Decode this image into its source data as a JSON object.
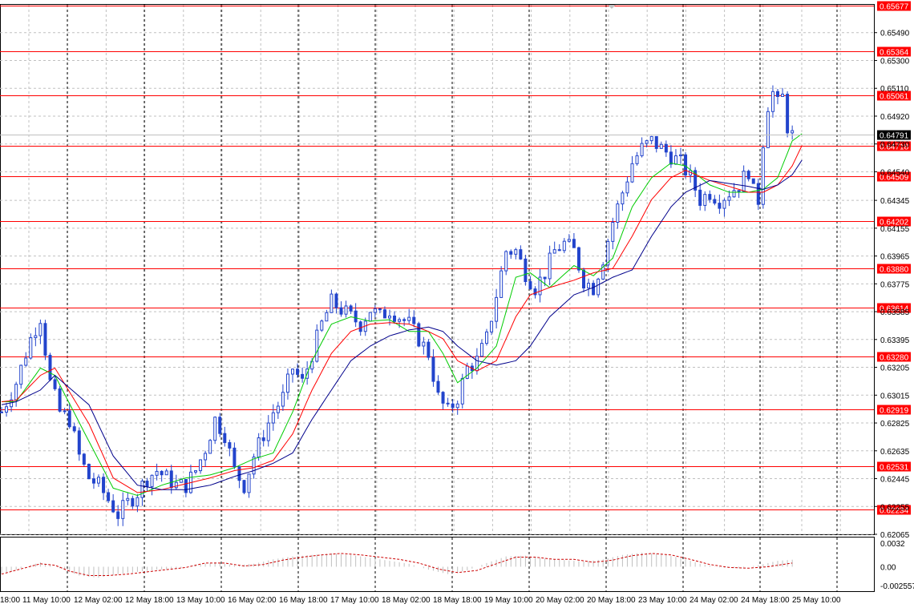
{
  "chart_data": [
    {
      "type": "candlestick",
      "title": "",
      "ylim": [
        0.62065,
        0.6568
      ],
      "grid": true,
      "y_ticks": [
        "0.65490",
        "0.65300",
        "0.65110",
        "0.64920",
        "0.64730",
        "0.64540",
        "0.64345",
        "0.64155",
        "0.63965",
        "0.63775",
        "0.63585",
        "0.63395",
        "0.63205",
        "0.63015",
        "0.62825",
        "0.62635",
        "0.62445",
        "0.62255",
        "0.62065"
      ],
      "x_ticks": [
        "18:00",
        "11 May 10:00",
        "12 May 02:00",
        "12 May 18:00",
        "13 May 10:00",
        "16 May 02:00",
        "16 May 18:00",
        "17 May 10:00",
        "18 May 02:00",
        "18 May 18:00",
        "19 May 10:00",
        "20 May 02:00",
        "20 May 18:00",
        "23 May 10:00",
        "24 May 02:00",
        "24 May 18:00",
        "25 May 10:00"
      ],
      "period_separators": [
        "11 May 10:00",
        "12 May 02:00",
        "12 May 18:00",
        "13 May 10:00",
        "16 May 02:00",
        "16 May 18:00",
        "17 May 10:00",
        "18 May 02:00",
        "18 May 18:00",
        "19 May 10:00",
        "20 May 02:00",
        "20 May 18:00",
        "23 May 10:00",
        "24 May 02:00",
        "24 May 18:00",
        "25 May 10:00"
      ],
      "current_price": "0.64791",
      "price_levels": [
        "0.65677",
        "0.65364",
        "0.65061",
        "0.64718",
        "0.64509",
        "0.64202",
        "0.63880",
        "0.63614",
        "0.63280",
        "0.62919",
        "0.62531",
        "0.62234"
      ],
      "candle_color": "#2244cc",
      "level_color": "#ff0000",
      "series": [
        {
          "color": "#00cc00",
          "waypoints": [
            [
              0,
              0.6297
            ],
            [
              3,
              0.6297
            ],
            [
              8,
              0.632
            ],
            [
              11,
              0.6315
            ],
            [
              18,
              0.627
            ],
            [
              23,
              0.6238
            ],
            [
              28,
              0.6233
            ],
            [
              33,
              0.624
            ],
            [
              38,
              0.6245
            ],
            [
              43,
              0.6247
            ],
            [
              48,
              0.6252
            ],
            [
              52,
              0.6258
            ],
            [
              56,
              0.6262
            ],
            [
              60,
              0.629
            ],
            [
              64,
              0.6325
            ],
            [
              68,
              0.635
            ],
            [
              72,
              0.6355
            ],
            [
              76,
              0.6352
            ],
            [
              80,
              0.6353
            ],
            [
              84,
              0.6345
            ],
            [
              88,
              0.6345
            ],
            [
              91,
              0.633
            ],
            [
              94,
              0.631
            ],
            [
              98,
              0.632
            ],
            [
              102,
              0.6335
            ],
            [
              106,
              0.6382
            ],
            [
              109,
              0.6385
            ],
            [
              113,
              0.6375
            ],
            [
              118,
              0.639
            ],
            [
              122,
              0.6383
            ],
            [
              126,
              0.6395
            ],
            [
              130,
              0.643
            ],
            [
              134,
              0.645
            ],
            [
              138,
              0.646
            ],
            [
              141,
              0.6458
            ],
            [
              146,
              0.6445
            ],
            [
              150,
              0.644
            ],
            [
              154,
              0.644
            ],
            [
              157,
              0.6442
            ],
            [
              160,
              0.645
            ],
            [
              163,
              0.6475
            ],
            [
              165,
              0.648
            ]
          ]
        },
        {
          "color": "#ff0000",
          "waypoints": [
            [
              0,
              0.6297
            ],
            [
              3,
              0.6298
            ],
            [
              8,
              0.6315
            ],
            [
              11,
              0.632
            ],
            [
              18,
              0.6282
            ],
            [
              23,
              0.6245
            ],
            [
              28,
              0.6235
            ],
            [
              33,
              0.6237
            ],
            [
              38,
              0.6241
            ],
            [
              43,
              0.6245
            ],
            [
              48,
              0.625
            ],
            [
              52,
              0.6252
            ],
            [
              56,
              0.6257
            ],
            [
              60,
              0.6275
            ],
            [
              64,
              0.6305
            ],
            [
              68,
              0.633
            ],
            [
              72,
              0.6345
            ],
            [
              76,
              0.635
            ],
            [
              80,
              0.6351
            ],
            [
              84,
              0.635
            ],
            [
              88,
              0.6345
            ],
            [
              91,
              0.634
            ],
            [
              94,
              0.6325
            ],
            [
              98,
              0.6318
            ],
            [
              102,
              0.6325
            ],
            [
              106,
              0.6355
            ],
            [
              109,
              0.637
            ],
            [
              113,
              0.6375
            ],
            [
              118,
              0.638
            ],
            [
              122,
              0.6385
            ],
            [
              126,
              0.6388
            ],
            [
              130,
              0.641
            ],
            [
              134,
              0.6435
            ],
            [
              138,
              0.645
            ],
            [
              141,
              0.6455
            ],
            [
              146,
              0.6448
            ],
            [
              150,
              0.6444
            ],
            [
              154,
              0.644
            ],
            [
              157,
              0.644
            ],
            [
              160,
              0.6445
            ],
            [
              163,
              0.6458
            ],
            [
              165,
              0.6472
            ]
          ]
        },
        {
          "color": "#00008b",
          "waypoints": [
            [
              0,
              0.6295
            ],
            [
              3,
              0.6297
            ],
            [
              8,
              0.6305
            ],
            [
              11,
              0.6315
            ],
            [
              18,
              0.6295
            ],
            [
              23,
              0.626
            ],
            [
              28,
              0.624
            ],
            [
              33,
              0.6237
            ],
            [
              38,
              0.6237
            ],
            [
              43,
              0.624
            ],
            [
              48,
              0.6246
            ],
            [
              52,
              0.625
            ],
            [
              56,
              0.6255
            ],
            [
              60,
              0.6262
            ],
            [
              64,
              0.6285
            ],
            [
              68,
              0.6305
            ],
            [
              72,
              0.6325
            ],
            [
              76,
              0.6335
            ],
            [
              80,
              0.6342
            ],
            [
              84,
              0.6346
            ],
            [
              88,
              0.6348
            ],
            [
              91,
              0.6345
            ],
            [
              94,
              0.6335
            ],
            [
              98,
              0.6325
            ],
            [
              102,
              0.6322
            ],
            [
              106,
              0.6325
            ],
            [
              109,
              0.6335
            ],
            [
              113,
              0.6355
            ],
            [
              118,
              0.637
            ],
            [
              122,
              0.6375
            ],
            [
              126,
              0.6382
            ],
            [
              130,
              0.6387
            ],
            [
              134,
              0.641
            ],
            [
              138,
              0.643
            ],
            [
              141,
              0.644
            ],
            [
              146,
              0.6448
            ],
            [
              150,
              0.6446
            ],
            [
              154,
              0.6444
            ],
            [
              157,
              0.6442
            ],
            [
              160,
              0.6445
            ],
            [
              163,
              0.6452
            ],
            [
              165,
              0.6462
            ]
          ]
        }
      ],
      "price_path": [
        [
          0,
          0.629
        ],
        [
          3,
          0.631
        ],
        [
          6,
          0.634
        ],
        [
          8,
          0.6355
        ],
        [
          10,
          0.631
        ],
        [
          12,
          0.629
        ],
        [
          14,
          0.6285
        ],
        [
          16,
          0.626
        ],
        [
          18,
          0.6245
        ],
        [
          20,
          0.624
        ],
        [
          22,
          0.623
        ],
        [
          24,
          0.622
        ],
        [
          26,
          0.6228
        ],
        [
          28,
          0.6235
        ],
        [
          30,
          0.6245
        ],
        [
          32,
          0.625
        ],
        [
          34,
          0.6245
        ],
        [
          36,
          0.624
        ],
        [
          38,
          0.624
        ],
        [
          40,
          0.625
        ],
        [
          42,
          0.6265
        ],
        [
          44,
          0.6285
        ],
        [
          46,
          0.6275
        ],
        [
          48,
          0.625
        ],
        [
          50,
          0.624
        ],
        [
          52,
          0.626
        ],
        [
          54,
          0.6275
        ],
        [
          56,
          0.629
        ],
        [
          58,
          0.63
        ],
        [
          60,
          0.632
        ],
        [
          62,
          0.631
        ],
        [
          64,
          0.633
        ],
        [
          66,
          0.635
        ],
        [
          68,
          0.6365
        ],
        [
          70,
          0.636
        ],
        [
          72,
          0.6355
        ],
        [
          74,
          0.635
        ],
        [
          76,
          0.636
        ],
        [
          78,
          0.6355
        ],
        [
          80,
          0.636
        ],
        [
          82,
          0.6355
        ],
        [
          84,
          0.635
        ],
        [
          86,
          0.634
        ],
        [
          88,
          0.633
        ],
        [
          90,
          0.63
        ],
        [
          92,
          0.629
        ],
        [
          94,
          0.63
        ],
        [
          96,
          0.632
        ],
        [
          98,
          0.6325
        ],
        [
          100,
          0.634
        ],
        [
          102,
          0.637
        ],
        [
          104,
          0.64
        ],
        [
          106,
          0.64
        ],
        [
          108,
          0.6385
        ],
        [
          110,
          0.6375
        ],
        [
          112,
          0.6385
        ],
        [
          114,
          0.64
        ],
        [
          116,
          0.6405
        ],
        [
          118,
          0.64
        ],
        [
          120,
          0.638
        ],
        [
          122,
          0.6375
        ],
        [
          124,
          0.6395
        ],
        [
          126,
          0.642
        ],
        [
          128,
          0.644
        ],
        [
          130,
          0.646
        ],
        [
          132,
          0.647
        ],
        [
          134,
          0.6475
        ],
        [
          136,
          0.647
        ],
        [
          138,
          0.6465
        ],
        [
          140,
          0.646
        ],
        [
          142,
          0.645
        ],
        [
          144,
          0.6435
        ],
        [
          146,
          0.644
        ],
        [
          148,
          0.6435
        ],
        [
          150,
          0.644
        ],
        [
          152,
          0.6445
        ],
        [
          154,
          0.6455
        ],
        [
          155,
          0.644
        ],
        [
          156,
          0.6435
        ],
        [
          157,
          0.6475
        ],
        [
          158,
          0.65
        ],
        [
          159,
          0.6508
        ],
        [
          160,
          0.65
        ],
        [
          161,
          0.6505
        ],
        [
          162,
          0.6485
        ],
        [
          163,
          0.6479
        ]
      ],
      "candle_count": 164
    },
    {
      "type": "bar+line",
      "title": "",
      "ylim": [
        -0.002557,
        0.0032
      ],
      "y_ticks": [
        "0.0032",
        "0.00",
        "-0.002557"
      ],
      "histogram_color": "#c0c0c0",
      "signal_color": "#cc0000",
      "signal_waypoints": [
        [
          0,
          -0.001
        ],
        [
          4,
          -0.0003
        ],
        [
          8,
          0.0004
        ],
        [
          11,
          0.0002
        ],
        [
          14,
          -0.0006
        ],
        [
          18,
          -0.0012
        ],
        [
          22,
          -0.0012
        ],
        [
          26,
          -0.001
        ],
        [
          30,
          -0.0007
        ],
        [
          34,
          -0.0004
        ],
        [
          38,
          -0.0001
        ],
        [
          42,
          0.0005
        ],
        [
          46,
          0.0005
        ],
        [
          50,
          0.0001
        ],
        [
          54,
          0.0003
        ],
        [
          58,
          0.0009
        ],
        [
          62,
          0.0013
        ],
        [
          66,
          0.0016
        ],
        [
          70,
          0.0018
        ],
        [
          74,
          0.0016
        ],
        [
          78,
          0.0013
        ],
        [
          82,
          0.001
        ],
        [
          86,
          0.0005
        ],
        [
          90,
          -0.0003
        ],
        [
          94,
          -0.0008
        ],
        [
          98,
          -0.0005
        ],
        [
          102,
          0.0004
        ],
        [
          106,
          0.0013
        ],
        [
          110,
          0.0013
        ],
        [
          114,
          0.001
        ],
        [
          118,
          0.001
        ],
        [
          122,
          0.0006
        ],
        [
          126,
          0.0009
        ],
        [
          130,
          0.0015
        ],
        [
          134,
          0.0018
        ],
        [
          138,
          0.0016
        ],
        [
          142,
          0.001
        ],
        [
          146,
          0.0003
        ],
        [
          150,
          -0.0001
        ],
        [
          154,
          -0.0002
        ],
        [
          158,
          0.0
        ],
        [
          162,
          0.0004
        ],
        [
          164,
          0.0006
        ]
      ],
      "histogram_waypoints": [
        [
          0,
          -0.001
        ],
        [
          4,
          -0.0002
        ],
        [
          8,
          0.0006
        ],
        [
          12,
          -0.0002
        ],
        [
          16,
          -0.0012
        ],
        [
          20,
          -0.0015
        ],
        [
          24,
          -0.001
        ],
        [
          28,
          -0.0007
        ],
        [
          32,
          -0.0004
        ],
        [
          36,
          -0.0003
        ],
        [
          40,
          0.0003
        ],
        [
          44,
          0.0006
        ],
        [
          48,
          0.0002
        ],
        [
          52,
          0.0004
        ],
        [
          56,
          0.001
        ],
        [
          60,
          0.0014
        ],
        [
          64,
          0.0016
        ],
        [
          68,
          0.0018
        ],
        [
          72,
          0.0016
        ],
        [
          76,
          0.0012
        ],
        [
          80,
          0.0008
        ],
        [
          84,
          0.0004
        ],
        [
          88,
          -0.0004
        ],
        [
          92,
          -0.001
        ],
        [
          96,
          -0.0005
        ],
        [
          100,
          0.0005
        ],
        [
          104,
          0.0014
        ],
        [
          108,
          0.0015
        ],
        [
          112,
          0.0011
        ],
        [
          116,
          0.0009
        ],
        [
          120,
          0.0007
        ],
        [
          124,
          0.001
        ],
        [
          128,
          0.0016
        ],
        [
          132,
          0.0019
        ],
        [
          136,
          0.0017
        ],
        [
          140,
          0.0012
        ],
        [
          144,
          0.0004
        ],
        [
          148,
          -0.0001
        ],
        [
          152,
          -0.0002
        ],
        [
          156,
          0.0002
        ],
        [
          160,
          0.0008
        ],
        [
          164,
          0.001
        ]
      ]
    }
  ]
}
